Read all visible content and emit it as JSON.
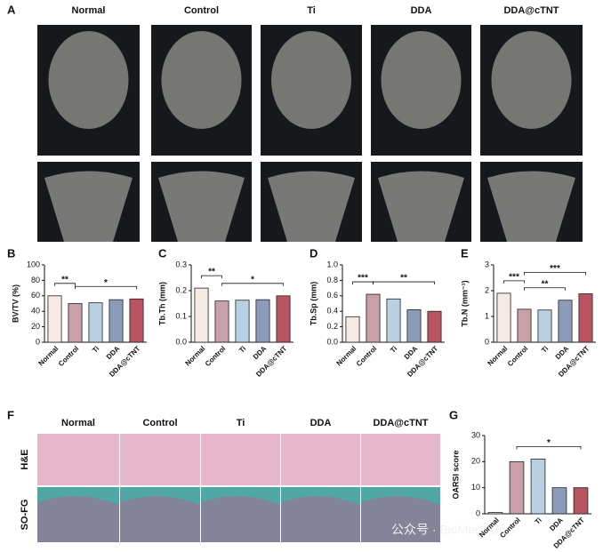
{
  "image_panels": [
    {
      "panel": "A",
      "columns": [
        "Normal",
        "Control",
        "Ti",
        "DDA",
        "DDA@cTNT"
      ]
    },
    {
      "panel": "F",
      "columns": [
        "Normal",
        "Control",
        "Ti",
        "DDA",
        "DDA@cTNT"
      ],
      "rows": [
        "H&E",
        "SO-FG"
      ]
    }
  ],
  "watermark": "公众号 · BioMed科技",
  "chart_data": [
    {
      "type": "bar",
      "panel": "B",
      "y_label": "BV/TV (%)",
      "categories": [
        "Normal",
        "Control",
        "Ti",
        "DDA",
        "DDA@cTNT"
      ],
      "values": [
        60,
        50,
        51,
        55,
        56
      ],
      "colors": [
        "#f6e8e2",
        "#c99fa8",
        "#b9cfe2",
        "#8b9cba",
        "#b8545f"
      ],
      "ylim": [
        0,
        100
      ],
      "yticks": [
        0,
        20,
        40,
        60,
        80,
        100
      ],
      "annotations": [
        {
          "text": "**",
          "between": [
            "Normal",
            "Control"
          ]
        },
        {
          "text": "*",
          "between": [
            "Control",
            "DDA@cTNT"
          ]
        }
      ]
    },
    {
      "type": "bar",
      "panel": "C",
      "y_label": "Tb.Th (mm)",
      "categories": [
        "Normal",
        "Control",
        "Ti",
        "DDA",
        "DDA@cTNT"
      ],
      "values": [
        0.21,
        0.16,
        0.163,
        0.165,
        0.18
      ],
      "colors": [
        "#f6e8e2",
        "#c99fa8",
        "#b9cfe2",
        "#8b9cba",
        "#b8545f"
      ],
      "ylim": [
        0,
        0.3
      ],
      "yticks": [
        {
          "value": 0,
          "label": "0.0"
        },
        0.1,
        0.2,
        0.3
      ],
      "annotations": [
        {
          "text": "**",
          "between": [
            "Normal",
            "Control"
          ]
        },
        {
          "text": "*",
          "between": [
            "Control",
            "DDA@cTNT"
          ]
        }
      ]
    },
    {
      "type": "bar",
      "panel": "D",
      "y_label": "Tb.Sp (mm)",
      "categories": [
        "Normal",
        "Control",
        "Ti",
        "DDA",
        "DDA@cTNT"
      ],
      "values": [
        0.33,
        0.62,
        0.56,
        0.42,
        0.4
      ],
      "colors": [
        "#f6e8e2",
        "#c99fa8",
        "#b9cfe2",
        "#8b9cba",
        "#b8545f"
      ],
      "ylim": [
        0,
        1
      ],
      "yticks": [
        {
          "value": 0,
          "label": "0.0"
        },
        0.2,
        0.4,
        0.6,
        0.8,
        {
          "value": 1,
          "label": "1.0"
        }
      ],
      "annotations": [
        {
          "text": "***",
          "between": [
            "Normal",
            "Control"
          ]
        },
        {
          "text": "**",
          "between": [
            "Control",
            "DDA@cTNT"
          ]
        }
      ]
    },
    {
      "type": "bar",
      "panel": "E",
      "y_label": "Tb.N (mm⁻¹)",
      "categories": [
        "Normal",
        "Control",
        "Ti",
        "DDA",
        "DDA@cTNT"
      ],
      "values": [
        1.9,
        1.28,
        1.25,
        1.63,
        1.88
      ],
      "colors": [
        "#f6e8e2",
        "#c99fa8",
        "#b9cfe2",
        "#8b9cba",
        "#b8545f"
      ],
      "ylim": [
        0,
        3
      ],
      "yticks": [
        0,
        1,
        2,
        3
      ],
      "annotations": [
        {
          "text": "***",
          "between": [
            "Normal",
            "Control"
          ]
        },
        {
          "text": "**",
          "between": [
            "Control",
            "DDA"
          ]
        },
        {
          "text": "***",
          "between": [
            "Control",
            "DDA@cTNT"
          ]
        }
      ]
    },
    {
      "type": "bar",
      "panel": "G",
      "y_label": "OARSI score",
      "categories": [
        "Normal",
        "Control",
        "Ti",
        "DDA",
        "DDA@cTNT"
      ],
      "values": [
        0.5,
        20,
        21,
        10,
        10
      ],
      "colors": [
        "#f6e8e2",
        "#c99fa8",
        "#b9cfe2",
        "#8b9cba",
        "#b8545f"
      ],
      "ylim": [
        0,
        30
      ],
      "yticks": [
        0,
        10,
        20,
        30
      ],
      "annotations": [
        {
          "text": "*",
          "between": [
            "Control",
            "DDA@cTNT"
          ]
        }
      ]
    }
  ]
}
